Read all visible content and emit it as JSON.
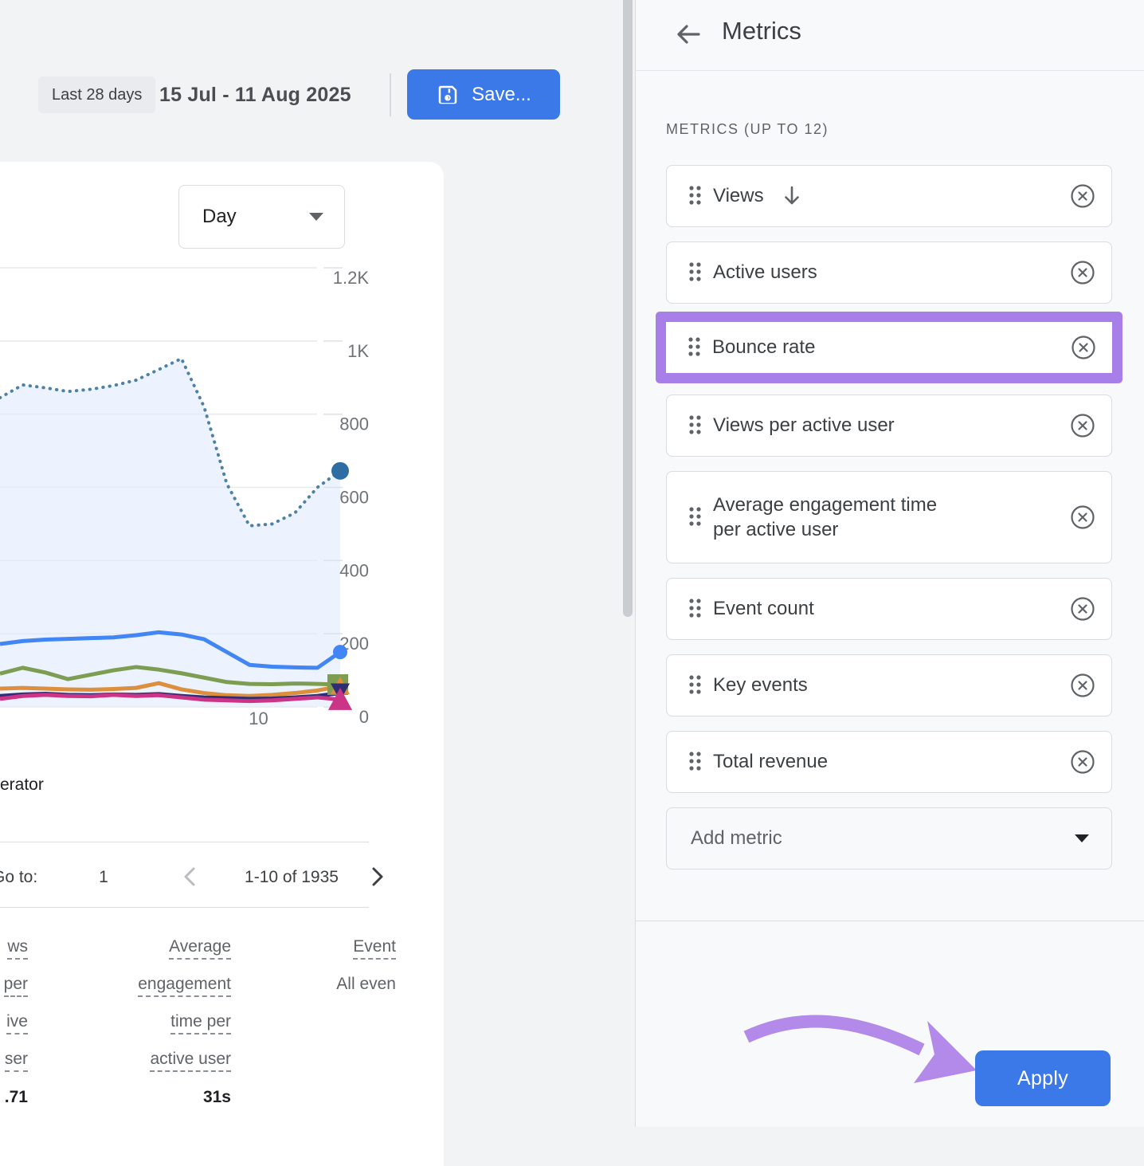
{
  "toolbar": {
    "range_chip": "Last 28 days",
    "date_range": "15 Jul - 11 Aug 2025",
    "save_label": "Save..."
  },
  "chart_card": {
    "day_select": "Day",
    "context_label": "erator",
    "pagination": {
      "go_to_label": "Go to:",
      "page": "1",
      "range": "1-10 of 1935"
    },
    "table": {
      "columns": [
        {
          "lines": [
            "ws",
            "per",
            "ive",
            "ser"
          ],
          "underlined": [
            true,
            true,
            true,
            true
          ],
          "value": ".71"
        },
        {
          "lines": [
            "Average",
            "engagement",
            "time per",
            "active user"
          ],
          "underlined": [
            true,
            true,
            true,
            true
          ],
          "value": "31s"
        },
        {
          "lines": [
            "Event",
            "All even"
          ],
          "underlined": [
            true,
            false
          ],
          "value": ""
        }
      ]
    }
  },
  "chart_data": {
    "type": "line",
    "title": "",
    "granularity_selector": "Day",
    "y_ticks": [
      "1.2K",
      "1K",
      "800",
      "600",
      "400",
      "200",
      "0"
    ],
    "y_max": 1200,
    "x_ticks": [
      {
        "label": "10",
        "frac": 0.76
      }
    ],
    "grid": true,
    "legend_position": "none",
    "series": [
      {
        "name": "views-trend-dotted",
        "color": "#4d82a6",
        "style": "dotted",
        "area_fill": "rgba(66,133,244,0.10)",
        "end_marker": "circle",
        "end_marker_size": 11,
        "end_marker_color": "#2e6da4",
        "values": [
          845,
          880,
          872,
          862,
          868,
          878,
          893,
          922,
          952,
          820,
          610,
          495,
          500,
          530,
          600,
          645
        ]
      },
      {
        "name": "active-users",
        "color": "#4285f4",
        "style": "solid",
        "end_marker": "circle",
        "end_marker_size": 9,
        "values": [
          172,
          180,
          184,
          186,
          188,
          190,
          196,
          204,
          198,
          185,
          150,
          115,
          110,
          108,
          107,
          150
        ]
      },
      {
        "name": "series-green",
        "color": "#7d9d52",
        "style": "solid",
        "end_marker": "square",
        "end_marker_size": 13,
        "values": [
          91,
          107,
          94,
          76,
          88,
          100,
          109,
          102,
          92,
          80,
          68,
          63,
          62,
          64,
          63,
          61
        ]
      },
      {
        "name": "series-orange",
        "color": "#dd8f3d",
        "style": "solid",
        "end_marker": "triangle-up",
        "end_marker_size": 12,
        "values": [
          50,
          52,
          50,
          48,
          47,
          49,
          52,
          65,
          48,
          38,
          32,
          30,
          33,
          38,
          45,
          57
        ]
      },
      {
        "name": "series-navy",
        "color": "#312d72",
        "style": "solid",
        "end_marker": "triangle-down",
        "end_marker_size": 12,
        "values": [
          30,
          34,
          36,
          33,
          32,
          34,
          33,
          35,
          30,
          26,
          24,
          22,
          23,
          26,
          30,
          38
        ]
      },
      {
        "name": "series-magenta",
        "color": "#cb3487",
        "style": "solid",
        "end_marker": "triangle-up",
        "end_marker_size": 15,
        "values": [
          22,
          30,
          33,
          30,
          29,
          33,
          30,
          32,
          26,
          20,
          18,
          16,
          18,
          22,
          26,
          20
        ]
      }
    ]
  },
  "panel": {
    "title": "Metrics",
    "section_label": "METRICS (UP TO 12)",
    "highlight_color": "#a87ee8",
    "items": [
      {
        "label": "Views",
        "sorted": true
      },
      {
        "label": "Active users"
      },
      {
        "label": "Bounce rate",
        "highlighted": true
      },
      {
        "label": "Views per active user"
      },
      {
        "label": "Average engagement time per active user",
        "two_line": true
      },
      {
        "label": "Event count"
      },
      {
        "label": "Key events"
      },
      {
        "label": "Total revenue"
      }
    ],
    "add_metric_label": "Add metric",
    "apply_label": "Apply"
  }
}
